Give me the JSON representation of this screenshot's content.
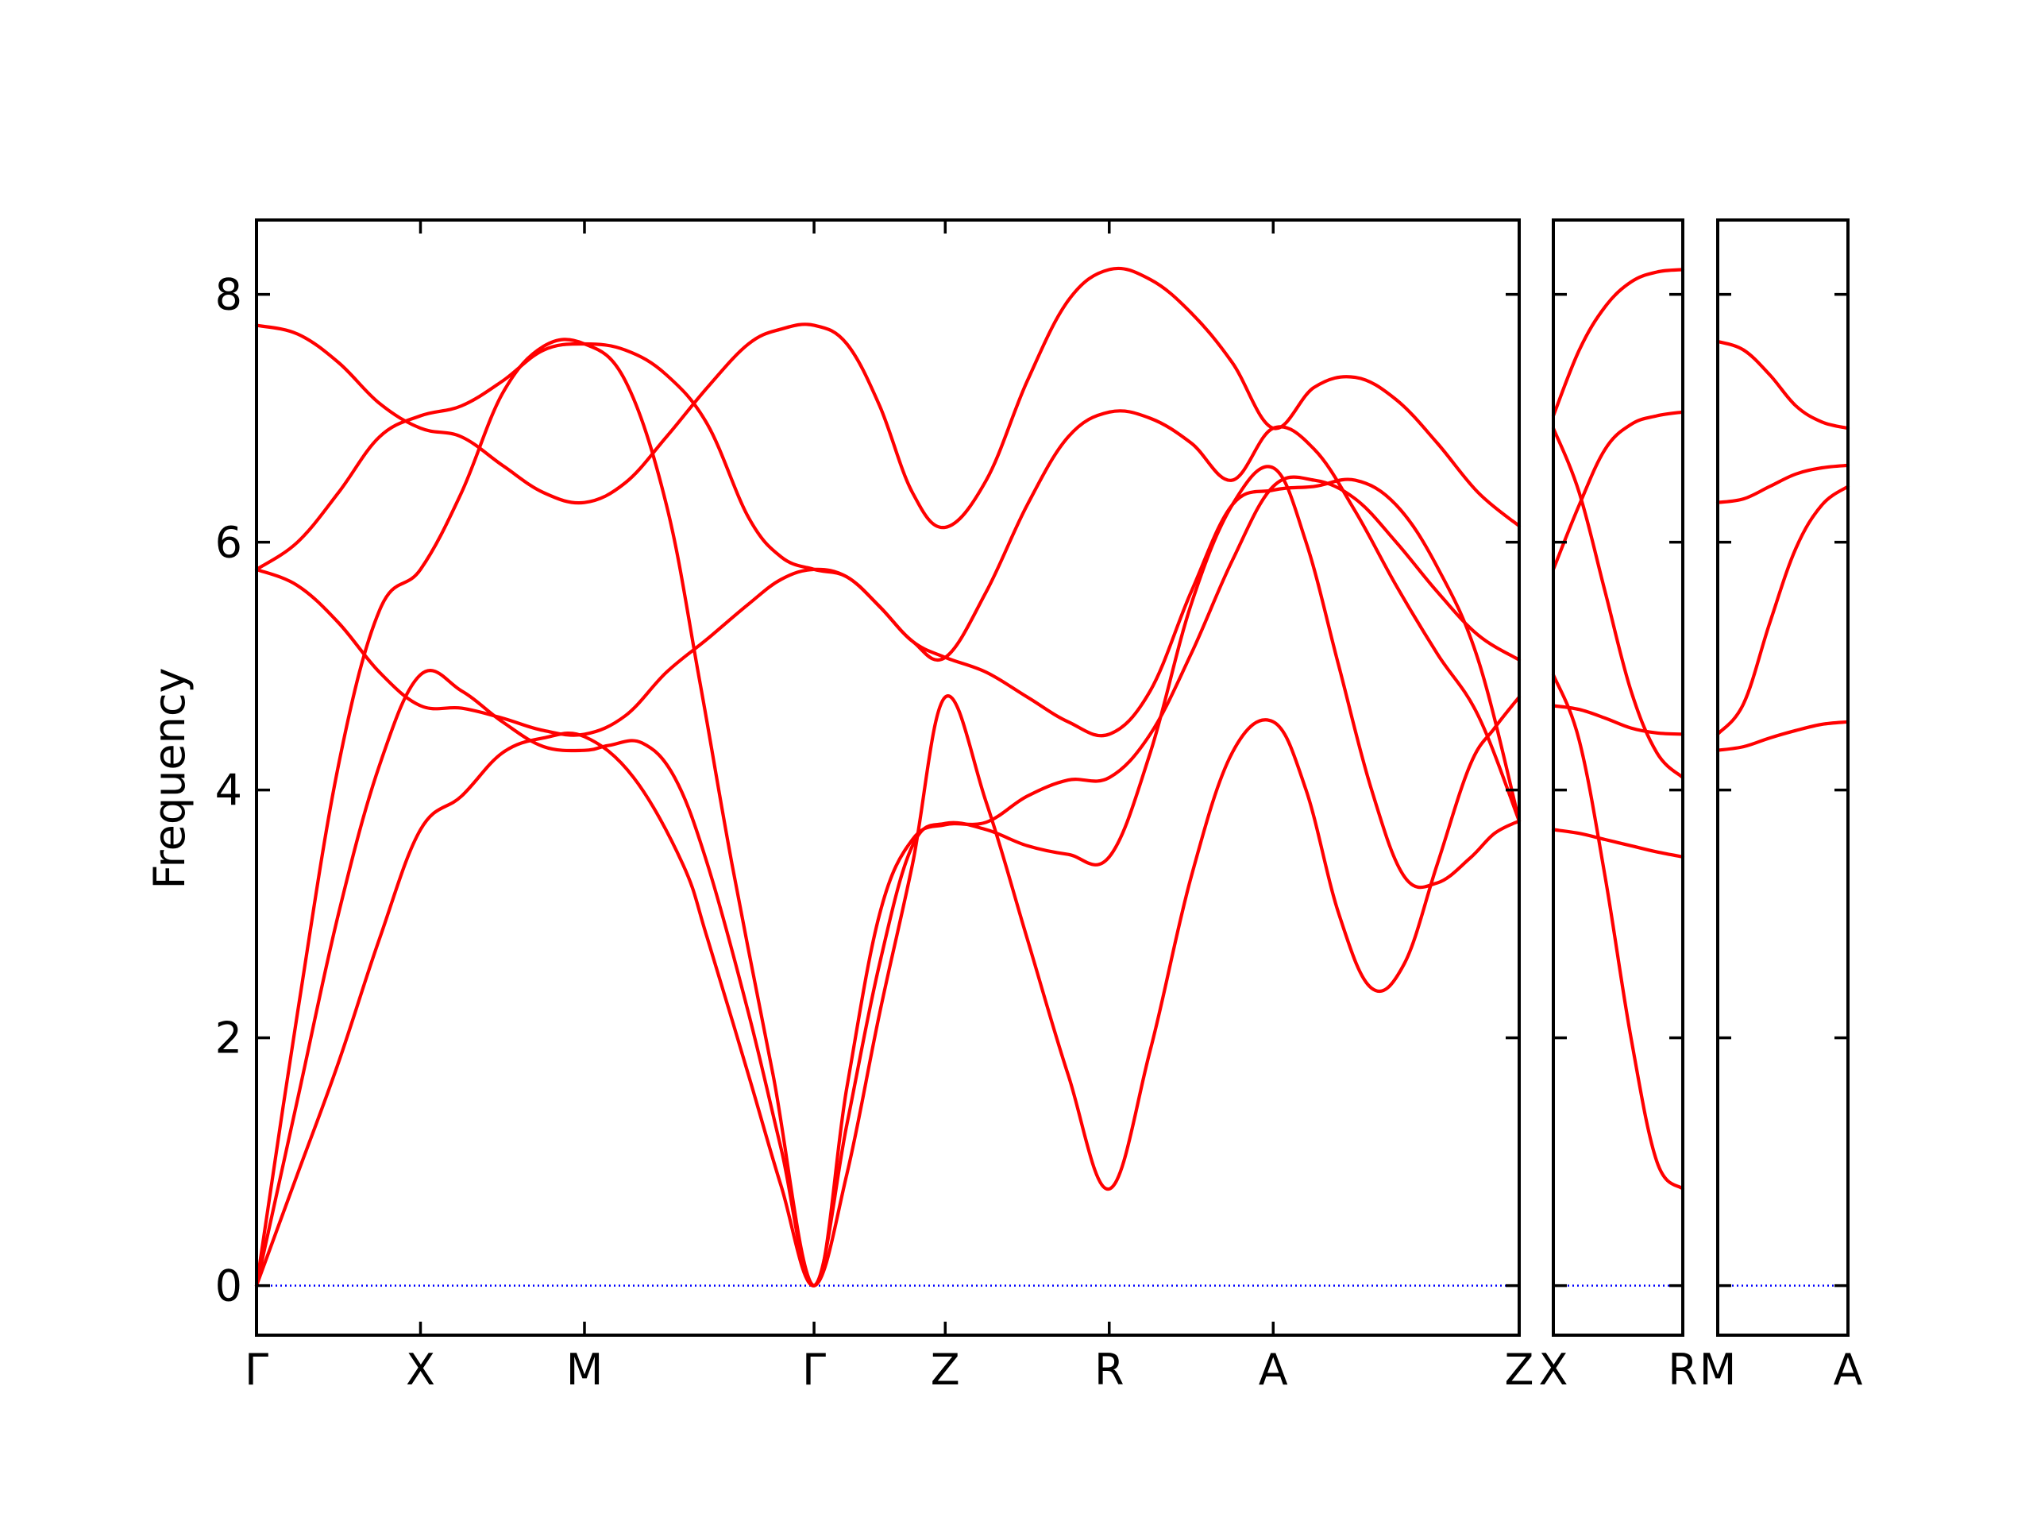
{
  "chart_data": {
    "type": "line",
    "ylabel": "Frequency",
    "ylim": [
      -0.4,
      8.6
    ],
    "yticks": [
      0,
      2,
      4,
      6,
      8
    ],
    "yticklabels": [
      "0",
      "2",
      "4",
      "6",
      "8"
    ],
    "grid": false,
    "legend": "none",
    "colors": {
      "bands": "#ff0000",
      "zero_line": "#0000ff",
      "axes": "#000000"
    },
    "zero_line": {
      "value": 0,
      "style": "dotted"
    },
    "panels": [
      {
        "xlim": [
          0,
          7.7
        ],
        "xticks": [
          0,
          1,
          2,
          3.4,
          4.2,
          5.2,
          6.2,
          7.7
        ],
        "xticklabels": [
          "Γ",
          "X",
          "M",
          "Γ",
          "Z",
          "R",
          "A",
          "Z"
        ],
        "bands": [
          {
            "x": [
              0,
              0.25,
              0.5,
              0.75,
              1.0,
              1.25,
              1.5,
              1.75,
              2.0,
              2.3,
              2.6,
              2.75,
              3.0,
              3.2,
              3.4,
              3.6,
              3.8,
              4.0,
              4.2,
              4.45,
              4.7,
              4.95,
              5.2,
              5.45,
              5.7,
              5.95,
              6.2,
              6.4,
              6.6,
              6.8,
              7.0,
              7.2,
              7.4,
              7.55,
              7.7
            ],
            "y": [
              0,
              0.9,
              1.8,
              2.8,
              3.68,
              3.95,
              4.3,
              4.42,
              4.43,
              4.1,
              3.4,
              2.8,
              1.7,
              0.8,
              0,
              0.9,
              2.2,
              3.4,
              4.75,
              3.9,
              2.8,
              1.7,
              0.78,
              1.9,
              3.3,
              4.3,
              4.55,
              4.0,
              3.0,
              2.4,
              2.6,
              3.4,
              4.2,
              4.5,
              4.75
            ]
          },
          {
            "x": [
              0,
              0.25,
              0.5,
              0.75,
              1.0,
              1.25,
              1.5,
              1.75,
              2.0,
              2.15,
              2.35,
              2.55,
              2.75,
              3.0,
              3.2,
              3.4,
              3.6,
              3.8,
              4.0,
              4.2,
              4.45,
              4.7,
              4.95,
              5.2,
              5.45,
              5.7,
              5.95,
              6.2,
              6.4,
              6.6,
              6.8,
              7.0,
              7.2,
              7.4,
              7.55,
              7.7
            ],
            "y": [
              0,
              1.5,
              3.0,
              4.2,
              4.93,
              4.8,
              4.55,
              4.35,
              4.32,
              4.36,
              4.38,
              4.1,
              3.4,
              2.2,
              1.1,
              0,
              1.3,
              2.6,
              3.55,
              3.73,
              3.68,
              3.55,
              3.48,
              3.46,
              4.3,
              5.5,
              6.3,
              6.6,
              6.0,
              5.0,
              4.0,
              3.3,
              3.25,
              3.45,
              3.65,
              3.75
            ]
          },
          {
            "x": [
              0,
              0.25,
              0.5,
              0.75,
              1.0,
              1.25,
              1.5,
              1.75,
              2.0,
              2.25,
              2.5,
              2.7,
              2.9,
              3.15,
              3.4,
              3.6,
              3.8,
              4.0,
              4.2,
              4.45,
              4.7,
              4.95,
              5.2,
              5.45,
              5.7,
              5.95,
              6.2,
              6.45,
              6.7,
              6.95,
              7.2,
              7.45,
              7.7
            ],
            "y": [
              0,
              2.2,
              4.2,
              5.45,
              5.78,
              6.4,
              7.2,
              7.58,
              7.6,
              7.3,
              6.3,
              4.9,
              3.4,
              1.7,
              0,
              1.6,
              3.0,
              3.6,
              3.72,
              3.74,
              3.95,
              4.08,
              4.1,
              4.45,
              5.1,
              5.85,
              6.45,
              6.5,
              6.35,
              6.0,
              5.6,
              5.25,
              5.05
            ]
          },
          {
            "x": [
              0,
              0.25,
              0.5,
              0.75,
              1.0,
              1.25,
              1.5,
              1.75,
              2.0,
              2.25,
              2.5,
              2.75,
              3.0,
              3.2,
              3.4,
              3.6,
              3.8,
              4.0,
              4.2,
              4.45,
              4.7,
              4.95,
              5.2,
              5.45,
              5.7,
              5.95,
              6.2,
              6.45,
              6.7,
              6.95,
              7.2,
              7.45,
              7.7
            ],
            "y": [
              5.78,
              5.65,
              5.35,
              4.95,
              4.68,
              4.66,
              4.58,
              4.48,
              4.45,
              4.6,
              4.95,
              5.22,
              5.5,
              5.7,
              5.78,
              5.72,
              5.48,
              5.2,
              5.07,
              4.95,
              4.75,
              4.55,
              4.45,
              4.8,
              5.6,
              6.3,
              6.42,
              6.45,
              6.5,
              6.3,
              5.8,
              5.05,
              3.75
            ]
          },
          {
            "x": [
              0,
              0.25,
              0.5,
              0.75,
              1.0,
              1.25,
              1.5,
              1.75,
              2.0,
              2.25,
              2.5,
              2.75,
              3.0,
              3.2,
              3.4,
              3.6,
              3.8,
              4.0,
              4.2,
              4.45,
              4.7,
              4.95,
              5.2,
              5.45,
              5.7,
              5.95,
              6.2,
              6.45,
              6.7,
              6.95,
              7.2,
              7.45,
              7.7
            ],
            "y": [
              5.78,
              6.0,
              6.4,
              6.85,
              7.02,
              7.1,
              7.3,
              7.55,
              7.6,
              7.55,
              7.35,
              6.95,
              6.2,
              5.88,
              5.78,
              5.72,
              5.48,
              5.2,
              5.07,
              5.6,
              6.3,
              6.85,
              7.05,
              7.0,
              6.8,
              6.5,
              6.92,
              6.75,
              6.25,
              5.65,
              5.1,
              4.6,
              3.75
            ]
          },
          {
            "x": [
              0,
              0.25,
              0.5,
              0.75,
              1.0,
              1.25,
              1.5,
              1.75,
              2.0,
              2.25,
              2.5,
              2.75,
              3.0,
              3.2,
              3.4,
              3.6,
              3.8,
              4.0,
              4.2,
              4.45,
              4.7,
              4.95,
              5.2,
              5.45,
              5.7,
              5.95,
              6.2,
              6.45,
              6.7,
              6.95,
              7.2,
              7.45,
              7.7
            ],
            "y": [
              7.75,
              7.68,
              7.45,
              7.12,
              6.92,
              6.85,
              6.62,
              6.4,
              6.32,
              6.48,
              6.85,
              7.25,
              7.6,
              7.72,
              7.75,
              7.6,
              7.1,
              6.4,
              6.12,
              6.5,
              7.3,
              7.95,
              8.2,
              8.12,
              7.85,
              7.45,
              6.92,
              7.25,
              7.33,
              7.15,
              6.8,
              6.4,
              6.13
            ]
          }
        ]
      },
      {
        "xlim": [
          0,
          1
        ],
        "xticks": [
          0,
          1
        ],
        "xticklabels": [
          "X",
          "R"
        ],
        "bands": [
          {
            "x": [
              0,
              0.2,
              0.4,
              0.6,
              0.8,
              1.0
            ],
            "y": [
              4.93,
              4.4,
              3.3,
              2.0,
              1.0,
              0.78
            ]
          },
          {
            "x": [
              0,
              0.2,
              0.4,
              0.6,
              0.8,
              1.0
            ],
            "y": [
              3.68,
              3.65,
              3.6,
              3.55,
              3.5,
              3.46
            ]
          },
          {
            "x": [
              0,
              0.2,
              0.4,
              0.6,
              0.8,
              1.0
            ],
            "y": [
              4.68,
              4.65,
              4.58,
              4.5,
              4.46,
              4.45
            ]
          },
          {
            "x": [
              0,
              0.2,
              0.4,
              0.6,
              0.8,
              1.0
            ],
            "y": [
              6.92,
              6.4,
              5.6,
              4.8,
              4.3,
              4.1
            ]
          },
          {
            "x": [
              0,
              0.2,
              0.4,
              0.6,
              0.8,
              1.0
            ],
            "y": [
              5.78,
              6.3,
              6.75,
              6.95,
              7.02,
              7.05
            ]
          },
          {
            "x": [
              0,
              0.2,
              0.4,
              0.6,
              0.8,
              1.0
            ],
            "y": [
              7.02,
              7.55,
              7.9,
              8.1,
              8.18,
              8.2
            ]
          }
        ]
      },
      {
        "xlim": [
          0,
          1
        ],
        "xticks": [
          0,
          1
        ],
        "xticklabels": [
          "M",
          "A"
        ],
        "bands": [
          {
            "x": [
              0,
              0.2,
              0.4,
              0.6,
              0.8,
              1.0
            ],
            "y": [
              4.32,
              4.35,
              4.42,
              4.48,
              4.53,
              4.55
            ]
          },
          {
            "x": [
              0,
              0.2,
              0.4,
              0.6,
              0.8,
              1.0
            ],
            "y": [
              4.45,
              4.7,
              5.35,
              5.95,
              6.3,
              6.45
            ]
          },
          {
            "x": [
              0,
              0.2,
              0.4,
              0.6,
              0.8,
              1.0
            ],
            "y": [
              6.32,
              6.35,
              6.45,
              6.55,
              6.6,
              6.62
            ]
          },
          {
            "x": [
              0,
              0.2,
              0.4,
              0.6,
              0.8,
              1.0
            ],
            "y": [
              7.62,
              7.55,
              7.35,
              7.1,
              6.97,
              6.92
            ]
          }
        ]
      }
    ]
  }
}
